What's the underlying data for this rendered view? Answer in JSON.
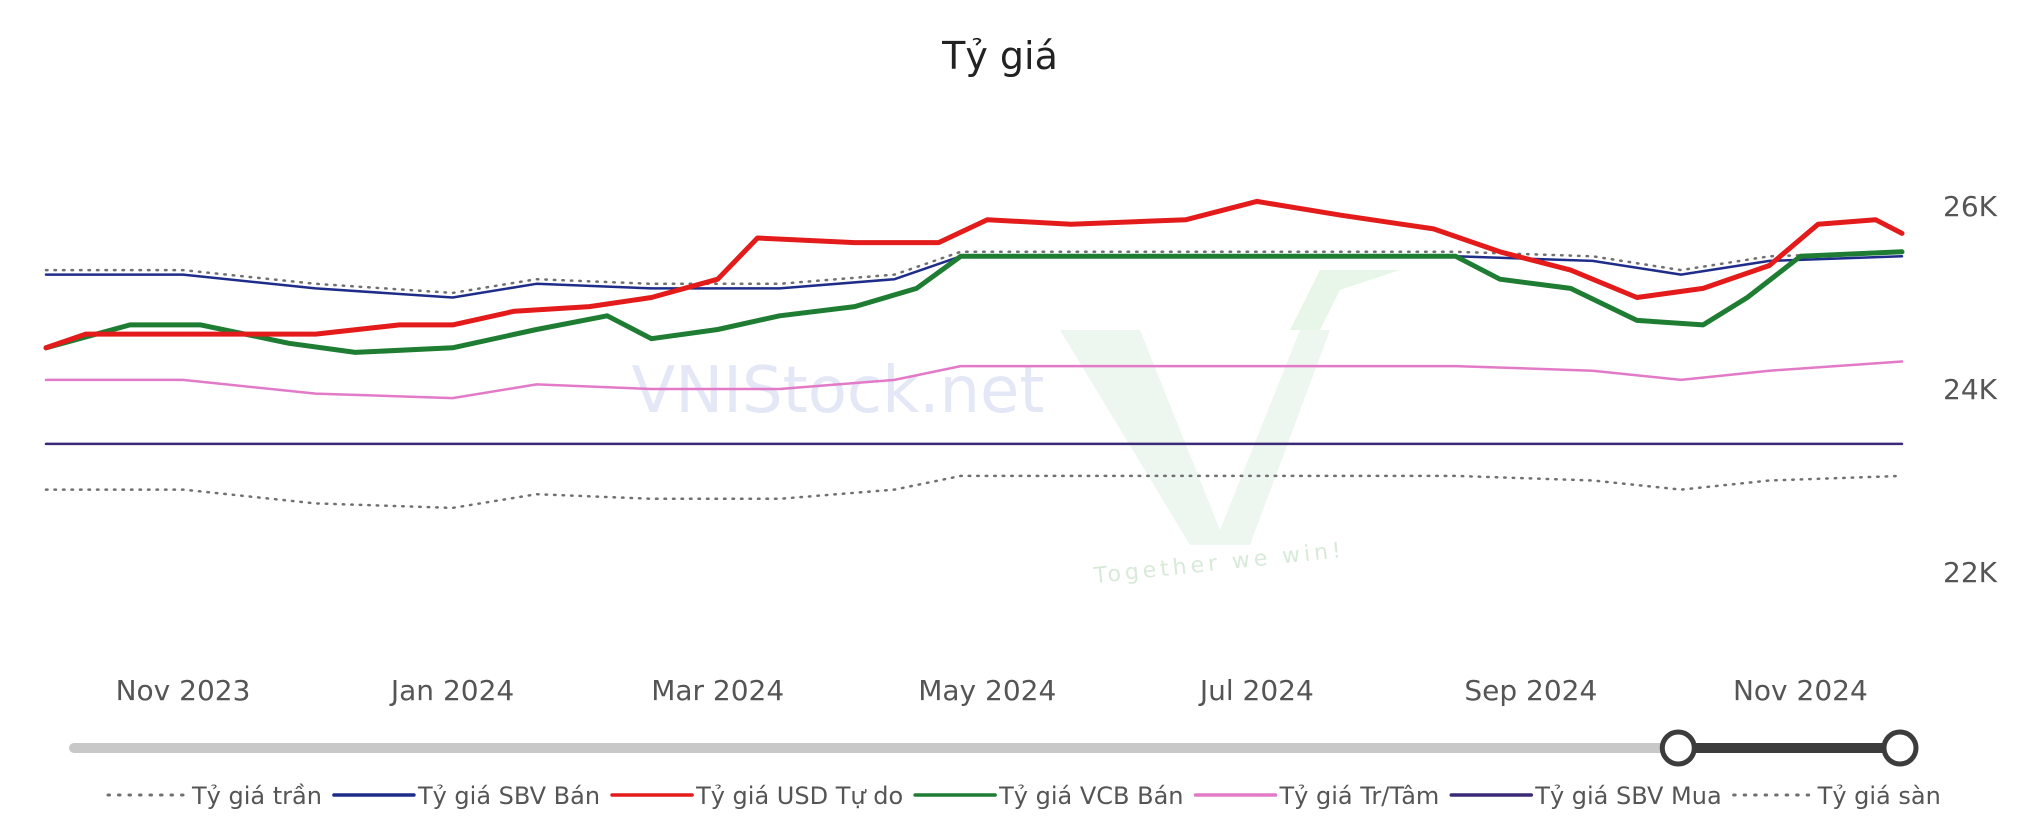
{
  "chart_data": {
    "type": "line",
    "title": "Tỷ giá",
    "xlabel": "",
    "ylabel": "",
    "x_ticks": [
      "Nov 2023",
      "Jan 2024",
      "Mar 2024",
      "May 2024",
      "Jul 2024",
      "Sep 2024",
      "Nov 2024"
    ],
    "y_ticks": [
      "26K",
      "24K",
      "22K"
    ],
    "ylim": [
      20500,
      26500
    ],
    "xlim": [
      "2023-10-01",
      "2024-11-24"
    ],
    "grid": false,
    "legend_position": "bottom",
    "range_slider": {
      "start": "2024-10-04",
      "end": "2024-11-24"
    },
    "watermark": {
      "text": "VNIStock.net",
      "slogan": "Together we win!"
    },
    "series": [
      {
        "name": "Tỷ giá trần",
        "color": "#707070",
        "style": "dotted",
        "points": [
          [
            "2023-10-01",
            25300
          ],
          [
            "2023-11-01",
            25300
          ],
          [
            "2023-12-01",
            25150
          ],
          [
            "2024-01-01",
            25050
          ],
          [
            "2024-01-20",
            25200
          ],
          [
            "2024-02-15",
            25150
          ],
          [
            "2024-03-15",
            25150
          ],
          [
            "2024-04-10",
            25250
          ],
          [
            "2024-04-25",
            25500
          ],
          [
            "2024-06-15",
            25500
          ],
          [
            "2024-08-15",
            25500
          ],
          [
            "2024-09-15",
            25450
          ],
          [
            "2024-10-05",
            25300
          ],
          [
            "2024-10-25",
            25450
          ],
          [
            "2024-11-24",
            25500
          ]
        ]
      },
      {
        "name": "Tỷ giá SBV Bán",
        "color": "#1f2d8a",
        "style": "solid",
        "points": [
          [
            "2023-10-01",
            25250
          ],
          [
            "2023-11-01",
            25250
          ],
          [
            "2023-12-01",
            25100
          ],
          [
            "2024-01-01",
            25000
          ],
          [
            "2024-01-20",
            25150
          ],
          [
            "2024-02-15",
            25100
          ],
          [
            "2024-03-15",
            25100
          ],
          [
            "2024-04-10",
            25200
          ],
          [
            "2024-04-25",
            25450
          ],
          [
            "2024-06-15",
            25450
          ],
          [
            "2024-08-15",
            25450
          ],
          [
            "2024-09-15",
            25400
          ],
          [
            "2024-10-05",
            25250
          ],
          [
            "2024-10-25",
            25400
          ],
          [
            "2024-11-24",
            25450
          ]
        ]
      },
      {
        "name": "Tỷ giá USD Tự do",
        "color": "#e31b1b",
        "style": "solid",
        "points": [
          [
            "2023-10-01",
            24450
          ],
          [
            "2023-10-10",
            24600
          ],
          [
            "2023-11-01",
            24600
          ],
          [
            "2023-12-01",
            24600
          ],
          [
            "2023-12-20",
            24700
          ],
          [
            "2024-01-01",
            24700
          ],
          [
            "2024-01-15",
            24850
          ],
          [
            "2024-02-01",
            24900
          ],
          [
            "2024-02-15",
            25000
          ],
          [
            "2024-03-01",
            25200
          ],
          [
            "2024-03-10",
            25650
          ],
          [
            "2024-04-01",
            25600
          ],
          [
            "2024-04-20",
            25600
          ],
          [
            "2024-05-01",
            25850
          ],
          [
            "2024-05-20",
            25800
          ],
          [
            "2024-06-15",
            25850
          ],
          [
            "2024-07-01",
            26050
          ],
          [
            "2024-07-20",
            25900
          ],
          [
            "2024-08-10",
            25750
          ],
          [
            "2024-08-25",
            25500
          ],
          [
            "2024-09-10",
            25300
          ],
          [
            "2024-09-25",
            25000
          ],
          [
            "2024-10-10",
            25100
          ],
          [
            "2024-10-25",
            25350
          ],
          [
            "2024-11-05",
            25800
          ],
          [
            "2024-11-18",
            25850
          ],
          [
            "2024-11-24",
            25700
          ]
        ]
      },
      {
        "name": "Tỷ giá VCB Bán",
        "color": "#1e7d32",
        "style": "solid",
        "points": [
          [
            "2023-10-01",
            24450
          ],
          [
            "2023-10-20",
            24700
          ],
          [
            "2023-11-05",
            24700
          ],
          [
            "2023-11-25",
            24500
          ],
          [
            "2023-12-10",
            24400
          ],
          [
            "2024-01-01",
            24450
          ],
          [
            "2024-01-20",
            24650
          ],
          [
            "2024-02-05",
            24800
          ],
          [
            "2024-02-15",
            24550
          ],
          [
            "2024-03-01",
            24650
          ],
          [
            "2024-03-15",
            24800
          ],
          [
            "2024-04-01",
            24900
          ],
          [
            "2024-04-15",
            25100
          ],
          [
            "2024-04-25",
            25450
          ],
          [
            "2024-06-15",
            25450
          ],
          [
            "2024-08-15",
            25450
          ],
          [
            "2024-08-25",
            25200
          ],
          [
            "2024-09-10",
            25100
          ],
          [
            "2024-09-25",
            24750
          ],
          [
            "2024-10-10",
            24700
          ],
          [
            "2024-10-20",
            25000
          ],
          [
            "2024-11-01",
            25450
          ],
          [
            "2024-11-24",
            25500
          ]
        ]
      },
      {
        "name": "Tỷ giá Tr/Tâm",
        "color": "#e27ac8",
        "style": "solid",
        "points": [
          [
            "2023-10-01",
            24100
          ],
          [
            "2023-11-01",
            24100
          ],
          [
            "2023-12-01",
            23950
          ],
          [
            "2024-01-01",
            23900
          ],
          [
            "2024-01-20",
            24050
          ],
          [
            "2024-02-15",
            24000
          ],
          [
            "2024-03-15",
            24000
          ],
          [
            "2024-04-10",
            24100
          ],
          [
            "2024-04-25",
            24250
          ],
          [
            "2024-06-15",
            24250
          ],
          [
            "2024-08-15",
            24250
          ],
          [
            "2024-09-15",
            24200
          ],
          [
            "2024-10-05",
            24100
          ],
          [
            "2024-10-25",
            24200
          ],
          [
            "2024-11-24",
            24300
          ]
        ]
      },
      {
        "name": "Tỷ giá SBV Mua",
        "color": "#3b2a77",
        "style": "solid",
        "points": [
          [
            "2023-10-01",
            23400
          ],
          [
            "2024-11-24",
            23400
          ]
        ]
      },
      {
        "name": "Tỷ giá sàn",
        "color": "#707070",
        "style": "dotted",
        "points": [
          [
            "2023-10-01",
            22900
          ],
          [
            "2023-11-01",
            22900
          ],
          [
            "2023-12-01",
            22750
          ],
          [
            "2024-01-01",
            22700
          ],
          [
            "2024-01-20",
            22850
          ],
          [
            "2024-02-15",
            22800
          ],
          [
            "2024-03-15",
            22800
          ],
          [
            "2024-04-10",
            22900
          ],
          [
            "2024-04-25",
            23050
          ],
          [
            "2024-06-15",
            23050
          ],
          [
            "2024-08-15",
            23050
          ],
          [
            "2024-09-15",
            23000
          ],
          [
            "2024-10-05",
            22900
          ],
          [
            "2024-10-25",
            23000
          ],
          [
            "2024-11-24",
            23050
          ]
        ]
      }
    ]
  }
}
